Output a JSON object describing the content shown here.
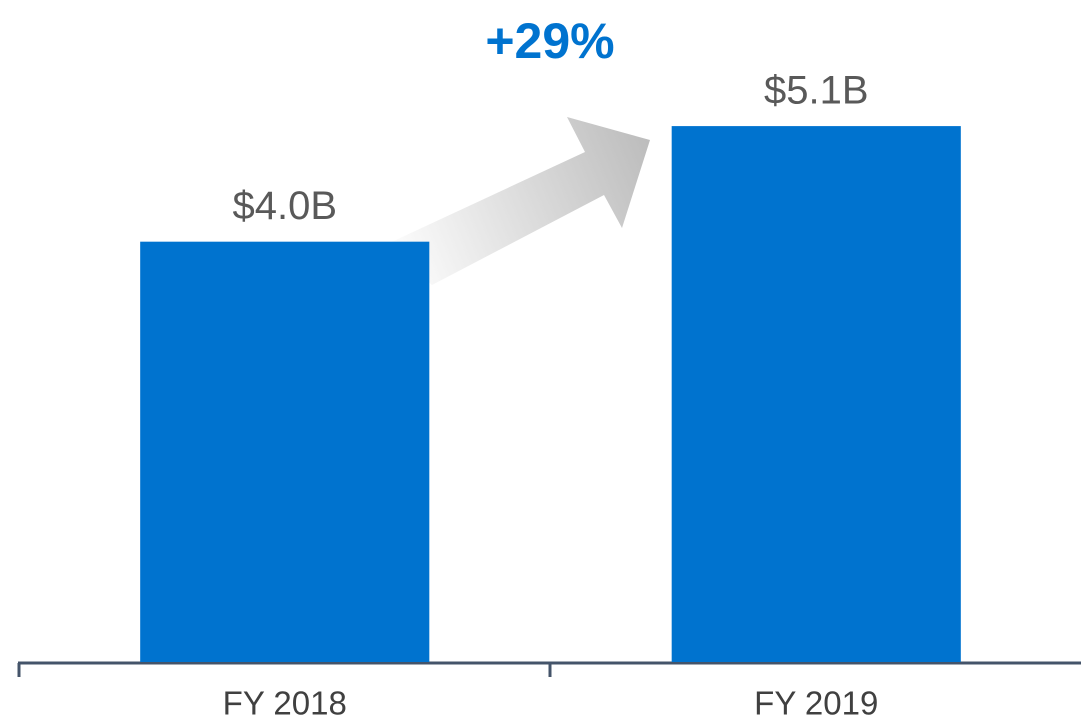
{
  "chart_data": {
    "type": "bar",
    "annotation": "+29%",
    "categories": [
      "FY 2018",
      "FY 2019"
    ],
    "values": [
      4.0,
      5.1
    ],
    "value_labels": [
      "$4.0B",
      "$5.1B"
    ],
    "color": "#0073cf",
    "ylim": [
      0,
      6.3
    ]
  }
}
